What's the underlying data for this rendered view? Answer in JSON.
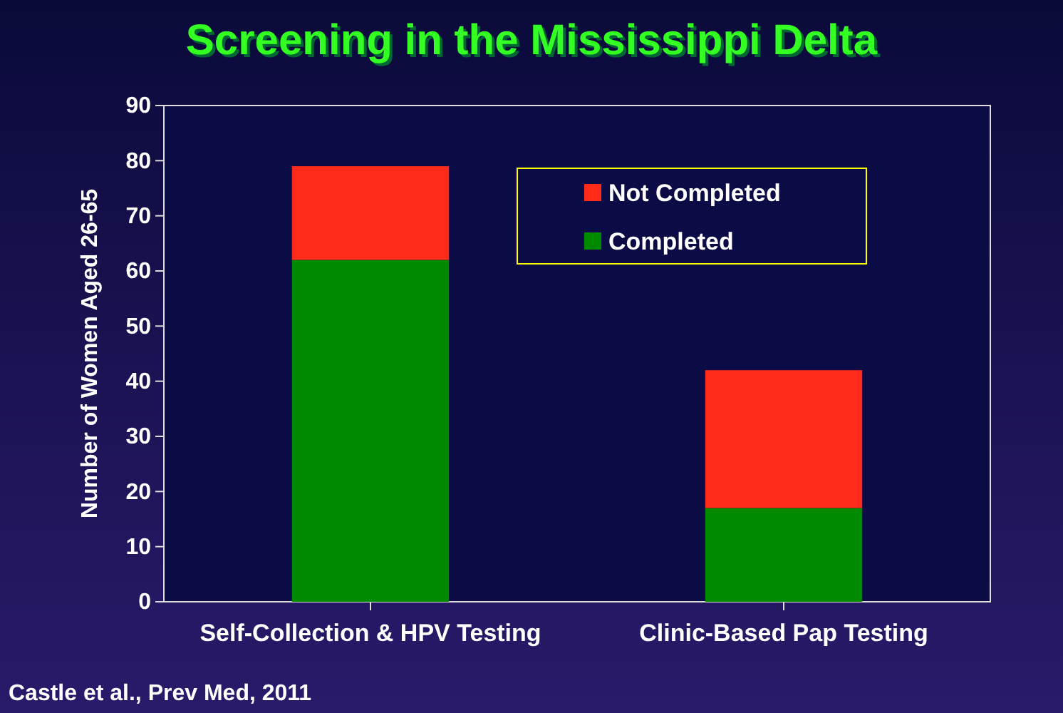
{
  "chart_data": {
    "type": "bar",
    "title": "Screening in the Mississippi Delta",
    "ylabel": "Number of Women Aged 26-65",
    "categories": [
      "Self-Collection & HPV Testing",
      "Clinic-Based Pap Testing"
    ],
    "series": [
      {
        "name": "Completed",
        "color": "#008a00",
        "values": [
          62,
          17
        ]
      },
      {
        "name": "Not Completed",
        "color": "#ff2a1a",
        "values": [
          17,
          25
        ]
      }
    ],
    "stacked": true,
    "ylim": [
      0,
      90
    ],
    "yticks": [
      0,
      10,
      20,
      30,
      40,
      50,
      60,
      70,
      80,
      90
    ],
    "legend": "top right",
    "annotations": [
      "Castle et al., Prev Med, 2011"
    ]
  }
}
